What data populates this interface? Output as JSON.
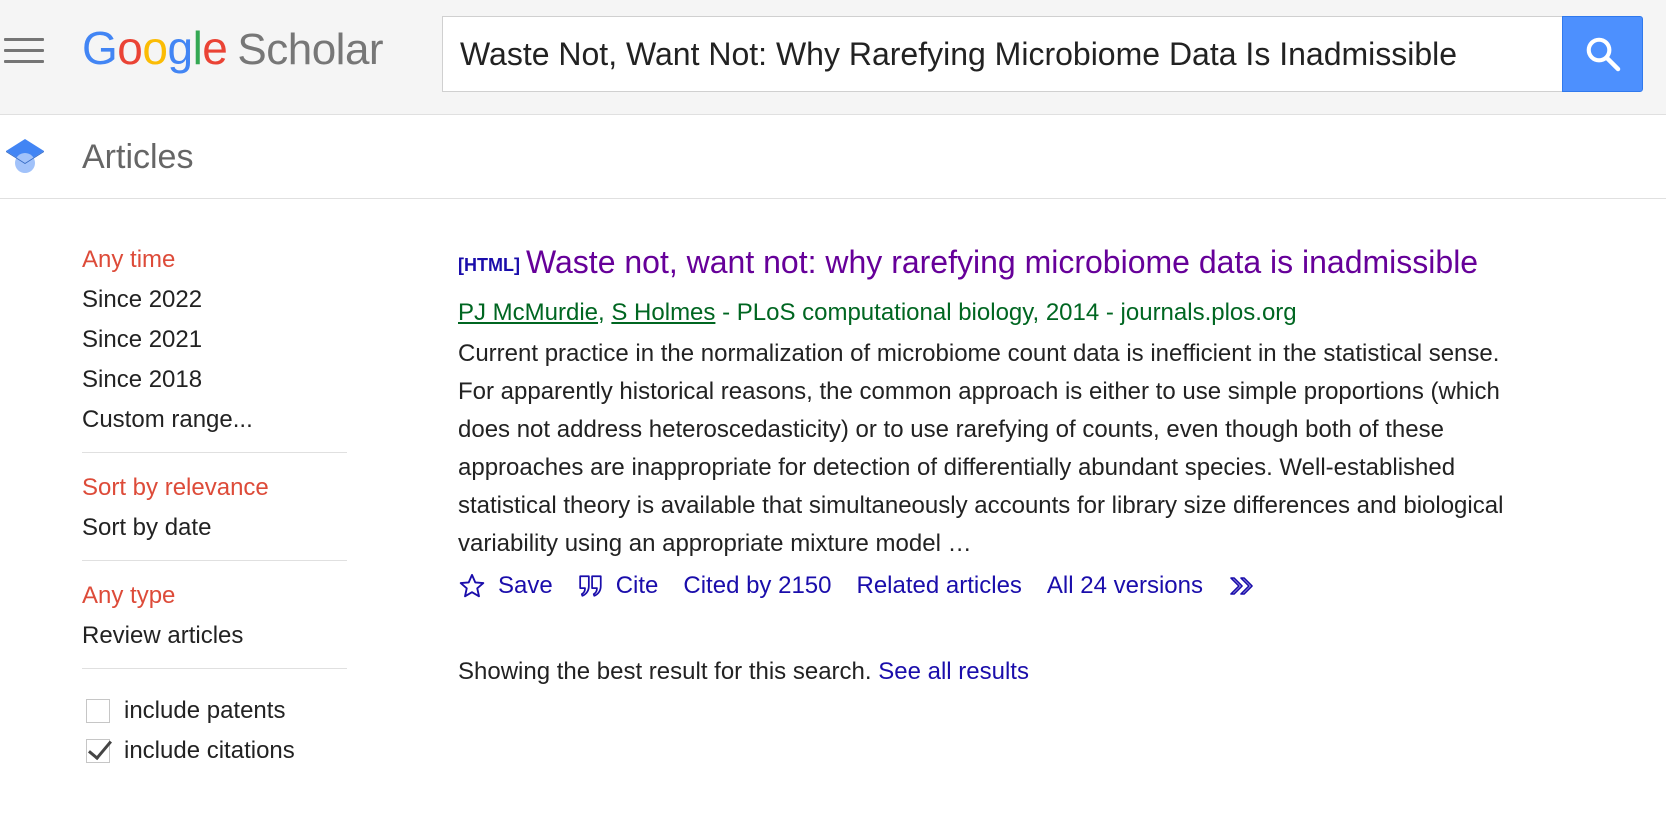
{
  "header": {
    "menu_icon": "hamburger-menu-icon",
    "logo": {
      "letters": [
        "G",
        "o",
        "o",
        "g",
        "l",
        "e"
      ],
      "product": "Scholar"
    },
    "search": {
      "value": "Waste Not, Want Not: Why Rarefying Microbiome Data Is Inadmissible",
      "button_icon": "search-icon"
    }
  },
  "section": {
    "icon": "graduation-cap-icon",
    "label": "Articles"
  },
  "sidebar": {
    "time_filters": [
      "Any time",
      "Since 2022",
      "Since 2021",
      "Since 2018",
      "Custom range..."
    ],
    "time_selected": "Any time",
    "sort_options": [
      "Sort by relevance",
      "Sort by date"
    ],
    "sort_selected": "Sort by relevance",
    "type_options": [
      "Any type",
      "Review articles"
    ],
    "type_selected": "Any type",
    "checkboxes": [
      {
        "label": "include patents",
        "checked": false
      },
      {
        "label": "include citations",
        "checked": true
      }
    ]
  },
  "result": {
    "format_tag": "[HTML]",
    "title": "Waste not, want not: why rarefying microbiome data is inadmissible",
    "authors": [
      "PJ McMurdie",
      "S Holmes"
    ],
    "author_separator": ",",
    "source": " - PLoS computational biology, 2014 - journals.plos.org",
    "snippet": "Current practice in the normalization of microbiome count data is inefficient in the statistical sense. For apparently historical reasons, the common approach is either to use simple proportions (which does not address heteroscedasticity) or to use rarefying of counts, even though both of these approaches are inappropriate for detection of differentially abundant species. Well-established statistical theory is available that simultaneously accounts for library size differences and biological variability using an appropriate mixture model …",
    "actions": {
      "save": "Save",
      "cite": "Cite",
      "cited_by": "Cited by 2150",
      "related": "Related articles",
      "versions": "All 24 versions"
    },
    "action_icons": [
      "star-icon",
      "quote-icon",
      "double-chevron-icon"
    ]
  },
  "footer_note": {
    "text": "Showing the best result for this search. ",
    "link": "See all results"
  },
  "colors": {
    "link": "#1a0dab",
    "visited_title": "#660099",
    "author_green": "#006621",
    "active_filter": "#dd4b39",
    "search_button": "#4d90fe"
  }
}
